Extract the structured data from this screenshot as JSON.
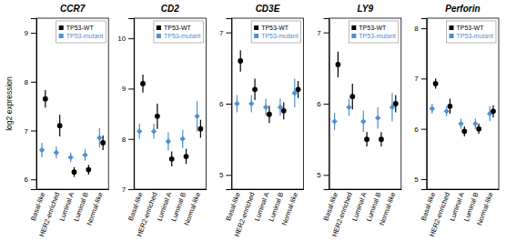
{
  "chart_data": [
    {
      "type": "errorbar",
      "title": "CCR7",
      "ylabel": "log2 expression",
      "categories": [
        "Basal-like",
        "HER2-enriched",
        "Luminal A",
        "Luminal B",
        "Normal-like"
      ],
      "ylim": [
        5.8,
        9.3
      ],
      "yticks": [
        6,
        7,
        8,
        9
      ],
      "grid": false,
      "legend": "upper right",
      "series": [
        {
          "name": "TP53-WT",
          "color": "#000000",
          "marker": "circle",
          "values": [
            7.65,
            7.1,
            6.15,
            6.2,
            6.75
          ],
          "errors": [
            0.18,
            0.22,
            0.1,
            0.1,
            0.15
          ]
        },
        {
          "name": "TP53-mutant",
          "color": "#4d90d0",
          "marker": "diamond",
          "values": [
            6.6,
            6.55,
            6.45,
            6.5,
            6.85
          ],
          "errors": [
            0.15,
            0.12,
            0.1,
            0.12,
            0.2
          ]
        }
      ]
    },
    {
      "type": "errorbar",
      "title": "CD2",
      "categories": [
        "Basal-like",
        "HER2-enriched",
        "Luminal A",
        "Luminal B",
        "Normal-like"
      ],
      "ylim": [
        7.0,
        10.4
      ],
      "yticks": [
        7,
        8,
        9,
        10
      ],
      "grid": false,
      "legend": "upper right",
      "series": [
        {
          "name": "TP53-WT",
          "color": "#000000",
          "marker": "circle",
          "values": [
            9.1,
            8.45,
            7.6,
            7.65,
            8.2
          ],
          "errors": [
            0.18,
            0.25,
            0.15,
            0.15,
            0.18
          ]
        },
        {
          "name": "TP53-mutant",
          "color": "#4d90d0",
          "marker": "diamond",
          "values": [
            8.15,
            8.15,
            7.95,
            8.0,
            8.45
          ],
          "errors": [
            0.15,
            0.15,
            0.18,
            0.18,
            0.3
          ]
        }
      ]
    },
    {
      "type": "errorbar",
      "title": "CD3E",
      "categories": [
        "Basal-like",
        "HER2-enriched",
        "Luminal A",
        "Luminal B",
        "Normal-like"
      ],
      "ylim": [
        4.8,
        7.2
      ],
      "yticks": [
        5,
        6,
        7
      ],
      "grid": false,
      "legend": "upper right",
      "series": [
        {
          "name": "TP53-WT",
          "color": "#000000",
          "marker": "circle",
          "values": [
            6.6,
            6.2,
            5.85,
            5.9,
            6.2
          ],
          "errors": [
            0.15,
            0.15,
            0.12,
            0.12,
            0.12
          ]
        },
        {
          "name": "TP53-mutant",
          "color": "#4d90d0",
          "marker": "diamond",
          "values": [
            6.0,
            6.0,
            5.95,
            5.95,
            6.15
          ],
          "errors": [
            0.12,
            0.12,
            0.12,
            0.12,
            0.2
          ]
        }
      ]
    },
    {
      "type": "errorbar",
      "title": "LY9",
      "categories": [
        "Basal-like",
        "HER2-enriched",
        "Luminal A",
        "Luminal B",
        "Normal-like"
      ],
      "ylim": [
        4.8,
        7.2
      ],
      "yticks": [
        5,
        6,
        7
      ],
      "grid": false,
      "legend": "upper right",
      "series": [
        {
          "name": "TP53-WT",
          "color": "#000000",
          "marker": "circle",
          "values": [
            6.55,
            6.1,
            5.5,
            5.5,
            6.0
          ],
          "errors": [
            0.18,
            0.18,
            0.1,
            0.1,
            0.12
          ]
        },
        {
          "name": "TP53-mutant",
          "color": "#4d90d0",
          "marker": "diamond",
          "values": [
            5.75,
            5.95,
            5.75,
            5.8,
            5.95
          ],
          "errors": [
            0.12,
            0.12,
            0.15,
            0.15,
            0.2
          ]
        }
      ]
    },
    {
      "type": "errorbar",
      "title": "Perforin",
      "categories": [
        "Basal-like",
        "HER2-enriched",
        "Luminal A",
        "Luminal B",
        "Normal-like"
      ],
      "ylim": [
        4.8,
        8.2
      ],
      "yticks": [
        5,
        6,
        7,
        8
      ],
      "grid": false,
      "legend": "upper right",
      "series": [
        {
          "name": "TP53-WT",
          "color": "#000000",
          "marker": "circle",
          "values": [
            6.9,
            6.45,
            5.95,
            6.0,
            6.35
          ],
          "errors": [
            0.1,
            0.15,
            0.1,
            0.1,
            0.12
          ]
        },
        {
          "name": "TP53-mutant",
          "color": "#4d90d0",
          "marker": "diamond",
          "values": [
            6.4,
            6.35,
            6.1,
            6.1,
            6.3
          ],
          "errors": [
            0.1,
            0.1,
            0.1,
            0.1,
            0.15
          ]
        }
      ]
    }
  ]
}
